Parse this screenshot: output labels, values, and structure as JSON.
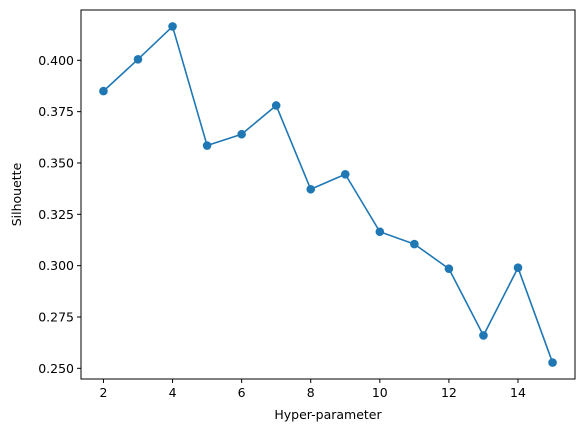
{
  "chart_data": {
    "type": "line",
    "xlabel": "Hyper-parameter",
    "ylabel": "Silhouette",
    "x": [
      2,
      3,
      4,
      5,
      6,
      7,
      8,
      9,
      10,
      11,
      12,
      13,
      14,
      15
    ],
    "series": [
      {
        "values": [
          0.385,
          0.4005,
          0.4165,
          0.3585,
          0.364,
          0.378,
          0.3372,
          0.3445,
          0.3165,
          0.3105,
          0.2985,
          0.266,
          0.299,
          0.2528
        ],
        "color": "#1f77b4",
        "marker": "circle"
      }
    ],
    "xlim": [
      1.35,
      15.65
    ],
    "ylim": [
      0.2448,
      0.4245
    ],
    "xticks": [
      2,
      4,
      6,
      8,
      10,
      12,
      14
    ],
    "xtick_labels": [
      "2",
      "4",
      "6",
      "8",
      "10",
      "12",
      "14"
    ],
    "yticks": [
      0.25,
      0.275,
      0.3,
      0.325,
      0.35,
      0.375,
      0.4
    ],
    "ytick_labels": [
      "0.250",
      "0.275",
      "0.300",
      "0.325",
      "0.350",
      "0.375",
      "0.400"
    ],
    "grid": false,
    "legend": "none"
  }
}
